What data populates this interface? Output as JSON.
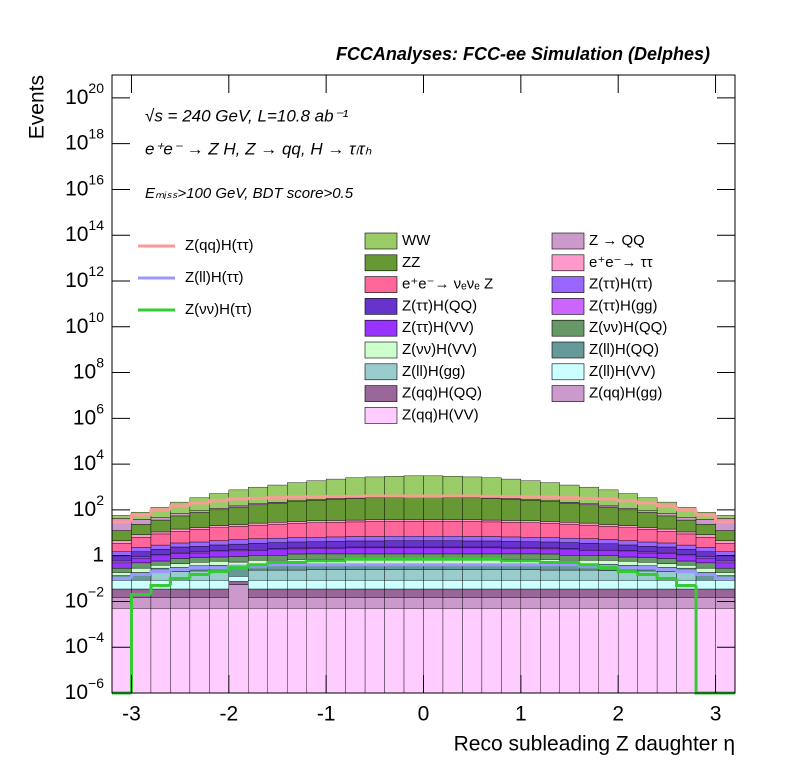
{
  "chart_data": {
    "type": "stacked_histogram",
    "title": "FCCAnalyses: FCC-ee Simulation (Delphes)",
    "annotations": [
      "√s = 240 GeV, L=10.8 ab⁻¹",
      "e⁺e⁻ → Z H, Z → qq, H → τₗτₕ",
      "Eₘᵢₛₛ>100 GeV, BDT score>0.5"
    ],
    "xlabel": "Reco subleading Z daughter η",
    "ylabel": "Events",
    "bins": [
      -3.2,
      -3.0,
      -2.8,
      -2.6,
      -2.4,
      -2.2,
      -2.0,
      -1.8,
      -1.6,
      -1.4,
      -1.2,
      -1.0,
      -0.8,
      -0.6,
      -0.4,
      -0.2,
      0,
      0.2,
      0.4,
      0.6,
      0.8,
      1.0,
      1.2,
      1.4,
      1.6,
      1.8,
      2.0,
      2.2,
      2.4,
      2.6,
      2.8,
      3.0,
      3.2
    ],
    "xlim": [
      -3.2,
      3.2
    ],
    "xticks": [
      -3,
      -2,
      -1,
      0,
      1,
      2,
      3
    ],
    "ylim": [
      1e-06,
      1e+21
    ],
    "log_y": true,
    "yticks": [
      {
        "value": 1e-06,
        "label": "10",
        "sup": "−6"
      },
      {
        "value": 0.0001,
        "label": "10",
        "sup": "−4"
      },
      {
        "value": 0.01,
        "label": "10",
        "sup": "−2"
      },
      {
        "value": 1,
        "label": "1"
      },
      {
        "value": 100,
        "label": "10",
        "sup": "2"
      },
      {
        "value": 10000.0,
        "label": "10",
        "sup": "4"
      },
      {
        "value": 1000000.0,
        "label": "10",
        "sup": "6"
      },
      {
        "value": 100000000.0,
        "label": "10",
        "sup": "8"
      },
      {
        "value": 10000000000.0,
        "label": "10",
        "sup": "10"
      },
      {
        "value": 1000000000000.0,
        "label": "10",
        "sup": "12"
      },
      {
        "value": 100000000000000.0,
        "label": "10",
        "sup": "14"
      },
      {
        "value": 1e+16,
        "label": "10",
        "sup": "16"
      },
      {
        "value": 1e+18,
        "label": "10",
        "sup": "18"
      },
      {
        "value": 1e+20,
        "label": "10",
        "sup": "20"
      }
    ],
    "series": [
      {
        "name": "WW",
        "color": "#99cc66",
        "values": [
          15,
          40,
          80,
          150,
          250,
          400,
          600,
          800,
          1000,
          1300,
          1600,
          1900,
          2200,
          2400,
          2600,
          2700,
          2700,
          2600,
          2400,
          2200,
          1900,
          1600,
          1300,
          1000,
          800,
          600,
          400,
          250,
          150,
          80,
          40,
          15
        ]
      },
      {
        "name": "Z → QQ",
        "color": "#cc99cc",
        "values": [
          30,
          15,
          12,
          14,
          15,
          16,
          17,
          18,
          18,
          19,
          19,
          20,
          20,
          20,
          20,
          20,
          20,
          20,
          20,
          20,
          20,
          19,
          19,
          18,
          18,
          17,
          16,
          15,
          14,
          12,
          15,
          30
        ]
      },
      {
        "name": "ZZ",
        "color": "#669933",
        "values": [
          8,
          15,
          25,
          40,
          60,
          80,
          110,
          140,
          170,
          200,
          230,
          260,
          280,
          300,
          310,
          320,
          320,
          310,
          300,
          280,
          260,
          230,
          200,
          170,
          140,
          110,
          80,
          60,
          40,
          25,
          15,
          8
        ]
      },
      {
        "name": "e⁺e⁻→ ττ",
        "color": "#ff99cc",
        "values": [
          1,
          2,
          2,
          3,
          3,
          4,
          4,
          5,
          5,
          5,
          6,
          6,
          6,
          6,
          6,
          6,
          6,
          6,
          6,
          6,
          6,
          6,
          5,
          5,
          5,
          4,
          4,
          3,
          3,
          2,
          2,
          1
        ]
      },
      {
        "name": "e⁺e⁻→ νₑνₑ Z",
        "color": "#ff6699",
        "values": [
          2,
          4,
          6,
          8,
          10,
          12,
          14,
          16,
          18,
          20,
          21,
          22,
          23,
          24,
          25,
          25,
          25,
          25,
          24,
          23,
          22,
          21,
          20,
          18,
          16,
          14,
          12,
          10,
          8,
          6,
          4,
          2
        ]
      },
      {
        "name": "Z(ττ)H(ττ)",
        "color": "#9966ff",
        "values": [
          0.5,
          0.8,
          1,
          1.2,
          1.4,
          1.6,
          1.8,
          2,
          2.1,
          2.2,
          2.3,
          2.4,
          2.5,
          2.5,
          2.6,
          2.6,
          2.6,
          2.6,
          2.5,
          2.5,
          2.4,
          2.3,
          2.2,
          2.1,
          2,
          1.8,
          1.6,
          1.4,
          1.2,
          1,
          0.8,
          0.5
        ]
      },
      {
        "name": "Z(ττ)H(QQ)",
        "color": "#6633cc",
        "values": [
          0.4,
          0.6,
          0.8,
          1,
          1.1,
          1.3,
          1.4,
          1.6,
          1.7,
          1.8,
          1.8,
          1.9,
          2,
          2,
          2.1,
          2.1,
          2.1,
          2.1,
          2,
          2,
          1.9,
          1.8,
          1.8,
          1.7,
          1.6,
          1.4,
          1.3,
          1.1,
          1,
          0.8,
          0.6,
          0.4
        ]
      },
      {
        "name": "Z(ττ)H(gg)",
        "color": "#cc66ff",
        "values": [
          0.1,
          0.1,
          0.12,
          0.14,
          0.15,
          0.16,
          0.17,
          0.18,
          0.18,
          0.19,
          0.19,
          0.2,
          0.2,
          0.2,
          0.2,
          0.2,
          0.2,
          0.2,
          0.2,
          0.2,
          0.2,
          0.19,
          0.19,
          0.18,
          0.18,
          0.17,
          0.16,
          0.15,
          0.14,
          0.12,
          0.1,
          0.1
        ]
      },
      {
        "name": "Z(ττ)H(VV)",
        "color": "#9933ff",
        "values": [
          0.2,
          0.3,
          0.4,
          0.5,
          0.5,
          0.6,
          0.7,
          0.7,
          0.8,
          0.8,
          0.9,
          0.9,
          1,
          1,
          1,
          1,
          1,
          1,
          1,
          1,
          0.9,
          0.9,
          0.8,
          0.8,
          0.7,
          0.7,
          0.6,
          0.5,
          0.5,
          0.4,
          0.3,
          0.2
        ]
      },
      {
        "name": "Z(νν)H(QQ)",
        "color": "#669966",
        "values": [
          0.1,
          0.2,
          0.2,
          0.3,
          0.3,
          0.3,
          0.4,
          0.4,
          0.4,
          0.5,
          0.5,
          0.5,
          0.5,
          0.5,
          0.5,
          0.5,
          0.5,
          0.5,
          0.5,
          0.5,
          0.5,
          0.5,
          0.5,
          0.4,
          0.4,
          0.4,
          0.3,
          0.3,
          0.3,
          0.2,
          0.2,
          0.1
        ]
      },
      {
        "name": "Z(νν)H(VV)",
        "color": "#ccffcc",
        "values": [
          0.05,
          0.1,
          0.1,
          0.15,
          0.15,
          0.2,
          0.2,
          0.2,
          0.2,
          0.25,
          0.25,
          0.25,
          0.25,
          0.25,
          0.25,
          0.25,
          0.25,
          0.25,
          0.25,
          0.25,
          0.25,
          0.25,
          0.25,
          0.2,
          0.2,
          0.2,
          0.2,
          0.15,
          0.15,
          0.1,
          0.1,
          0.05
        ]
      },
      {
        "name": "Z(ll)H(QQ)",
        "color": "#669999",
        "values": [
          0.05,
          0.1,
          0.1,
          0.1,
          0.15,
          0.15,
          0.2,
          0.2,
          0.2,
          0.2,
          0.2,
          0.2,
          0.2,
          0.2,
          0.2,
          0.2,
          0.2,
          0.2,
          0.2,
          0.2,
          0.2,
          0.2,
          0.2,
          0.2,
          0.2,
          0.2,
          0.15,
          0.15,
          0.1,
          0.1,
          0.1,
          0.05
        ]
      },
      {
        "name": "Z(ll)H(gg)",
        "color": "#99cccc",
        "values": [
          0,
          0,
          0.1,
          0.12,
          0.13,
          0.14,
          0,
          0.15,
          0.15,
          0.15,
          0.16,
          0.16,
          0.16,
          0.16,
          0.16,
          0.16,
          0.16,
          0.16,
          0.16,
          0.16,
          0.16,
          0.16,
          0.15,
          0.15,
          0.15,
          0.14,
          0.14,
          0.13,
          0.12,
          0.1,
          0,
          0
        ]
      },
      {
        "name": "Z(ll)H(VV)",
        "color": "#ccffff",
        "values": [
          0.05,
          0.05,
          0.05,
          0.05,
          0.05,
          0.05,
          0.05,
          0.05,
          0.05,
          0.05,
          0.05,
          0.05,
          0.05,
          0.05,
          0.05,
          0.05,
          0.05,
          0.05,
          0.05,
          0.05,
          0.05,
          0.05,
          0.05,
          0.05,
          0.05,
          0.05,
          0.05,
          0.05,
          0.05,
          0.05,
          0.05,
          0.05
        ]
      },
      {
        "name": "Z(qq)H(QQ)",
        "color": "#996699",
        "values": [
          0.02,
          0.02,
          0.02,
          0.02,
          0.02,
          0.02,
          0.02,
          0.02,
          0.02,
          0.02,
          0.02,
          0.02,
          0.02,
          0.02,
          0.02,
          0.02,
          0.02,
          0.02,
          0.02,
          0.02,
          0.02,
          0.02,
          0.02,
          0.02,
          0.02,
          0.02,
          0.02,
          0.02,
          0.02,
          0.02,
          0.02,
          0.02
        ]
      },
      {
        "name": "Z(qq)H(gg)",
        "color": "#cc99cc",
        "values": [
          0.01,
          0.01,
          0.01,
          0.01,
          0.01,
          0.01,
          0.05,
          0.01,
          0.01,
          0.01,
          0.01,
          0.01,
          0.01,
          0.01,
          0.01,
          0.01,
          0.01,
          0.01,
          0.01,
          0.01,
          0.01,
          0.01,
          0.01,
          0.01,
          0.01,
          0.01,
          0.01,
          0.01,
          0.01,
          0.01,
          0.01,
          0.01
        ]
      },
      {
        "name": "Z(qq)H(VV)",
        "color": "#ffccff",
        "values": [
          0.005,
          0.005,
          0.005,
          0.005,
          0.005,
          0.005,
          0.005,
          0.005,
          0.005,
          0.005,
          0.005,
          0.005,
          0.005,
          0.005,
          0.005,
          0.005,
          0.005,
          0.005,
          0.005,
          0.005,
          0.005,
          0.005,
          0.005,
          0.005,
          0.005,
          0.005,
          0.005,
          0.005,
          0.005,
          0.005,
          0.005,
          0.005
        ]
      }
    ],
    "lines": [
      {
        "name": "Z(qq)H(ττ)",
        "color": "#ff9999",
        "values": [
          30,
          60,
          100,
          150,
          200,
          250,
          300,
          320,
          340,
          360,
          370,
          380,
          390,
          400,
          400,
          400,
          400,
          400,
          400,
          390,
          380,
          370,
          360,
          340,
          320,
          300,
          250,
          200,
          150,
          100,
          60,
          30
        ]
      },
      {
        "name": "Z(ll)H(ττ)",
        "color": "#9999ff",
        "values": [
          0.1,
          0.15,
          0.2,
          0.25,
          0.3,
          0.3,
          0.35,
          0.35,
          0.4,
          0.4,
          0.4,
          0.4,
          0.4,
          0.4,
          0.4,
          0.4,
          0.4,
          0.4,
          0.4,
          0.4,
          0.4,
          0.4,
          0.4,
          0.4,
          0.35,
          0.35,
          0.3,
          0.3,
          0.25,
          0.2,
          0.15,
          0.1
        ]
      },
      {
        "name": "Z(νν)H(ττ)",
        "color": "#33cc33",
        "values": [
          0,
          0.02,
          0.05,
          0.1,
          0.15,
          0.2,
          0.3,
          0.4,
          0.5,
          0.5,
          0.6,
          0.6,
          0.7,
          0.7,
          0.7,
          0.7,
          0.7,
          0.7,
          0.7,
          0.7,
          0.6,
          0.6,
          0.5,
          0.5,
          0.4,
          0.3,
          0.2,
          0.15,
          0.1,
          0.05,
          0,
          0
        ]
      }
    ]
  }
}
